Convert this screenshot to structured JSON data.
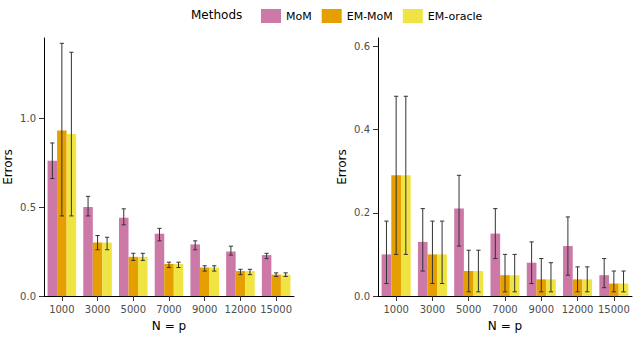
{
  "chart_data": [
    {
      "type": "bar",
      "legend": "top",
      "legend_title": "Methods",
      "x_label": "N = p",
      "y_label": "Errors",
      "categories": [
        "1000",
        "3000",
        "5000",
        "7000",
        "9000",
        "12000",
        "15000"
      ],
      "ylim": [
        0,
        1.45
      ],
      "yticks": [
        {
          "value": 0,
          "label": "0.0"
        },
        {
          "value": 0.5,
          "label": "0.5"
        },
        {
          "value": 1,
          "label": "1.0"
        }
      ],
      "grid": false,
      "series": [
        {
          "name": "MoM",
          "color": "#cc79a7",
          "values": [
            0.76,
            0.5,
            0.44,
            0.35,
            0.29,
            0.25,
            0.23
          ],
          "error_lower": [
            0.66,
            0.45,
            0.4,
            0.31,
            0.26,
            0.23,
            0.21
          ],
          "error_upper": [
            0.86,
            0.56,
            0.49,
            0.38,
            0.31,
            0.28,
            0.24
          ]
        },
        {
          "name": "EM-MoM",
          "color": "#e69f00",
          "values": [
            0.93,
            0.3,
            0.22,
            0.18,
            0.16,
            0.14,
            0.12
          ],
          "error_lower": [
            0.45,
            0.26,
            0.2,
            0.16,
            0.14,
            0.12,
            0.11
          ],
          "error_upper": [
            1.42,
            0.34,
            0.24,
            0.19,
            0.17,
            0.15,
            0.13
          ]
        },
        {
          "name": "EM-oracle",
          "color": "#f0e442",
          "values": [
            0.91,
            0.3,
            0.22,
            0.18,
            0.16,
            0.14,
            0.12
          ],
          "error_lower": [
            0.45,
            0.26,
            0.2,
            0.16,
            0.14,
            0.12,
            0.11
          ],
          "error_upper": [
            1.37,
            0.33,
            0.24,
            0.19,
            0.17,
            0.15,
            0.13
          ]
        }
      ]
    },
    {
      "type": "bar",
      "x_label": "N = p",
      "y_label": "Errors",
      "categories": [
        "1000",
        "3000",
        "5000",
        "7000",
        "9000",
        "12000",
        "15000"
      ],
      "ylim": [
        0,
        0.62
      ],
      "yticks": [
        {
          "value": 0,
          "label": "0.0"
        },
        {
          "value": 0.2,
          "label": "0.2"
        },
        {
          "value": 0.4,
          "label": "0.4"
        },
        {
          "value": 0.6,
          "label": "0.6"
        }
      ],
      "grid": false,
      "series": [
        {
          "name": "MoM",
          "color": "#cc79a7",
          "values": [
            0.1,
            0.13,
            0.21,
            0.15,
            0.08,
            0.12,
            0.05
          ],
          "error_lower": [
            0.03,
            0.06,
            0.12,
            0.09,
            0.03,
            0.05,
            0.02
          ],
          "error_upper": [
            0.18,
            0.21,
            0.29,
            0.21,
            0.13,
            0.19,
            0.09
          ]
        },
        {
          "name": "EM-MoM",
          "color": "#e69f00",
          "values": [
            0.29,
            0.1,
            0.06,
            0.05,
            0.04,
            0.04,
            0.03
          ],
          "error_lower": [
            0.1,
            0.03,
            0.01,
            0.01,
            0.01,
            0.01,
            0.01
          ],
          "error_upper": [
            0.48,
            0.18,
            0.11,
            0.1,
            0.09,
            0.07,
            0.06
          ]
        },
        {
          "name": "EM-oracle",
          "color": "#f0e442",
          "values": [
            0.29,
            0.1,
            0.06,
            0.05,
            0.04,
            0.04,
            0.03
          ],
          "error_lower": [
            0.1,
            0.03,
            0.01,
            0.01,
            0.01,
            0.01,
            0.01
          ],
          "error_upper": [
            0.48,
            0.18,
            0.11,
            0.1,
            0.08,
            0.07,
            0.06
          ]
        }
      ]
    }
  ]
}
